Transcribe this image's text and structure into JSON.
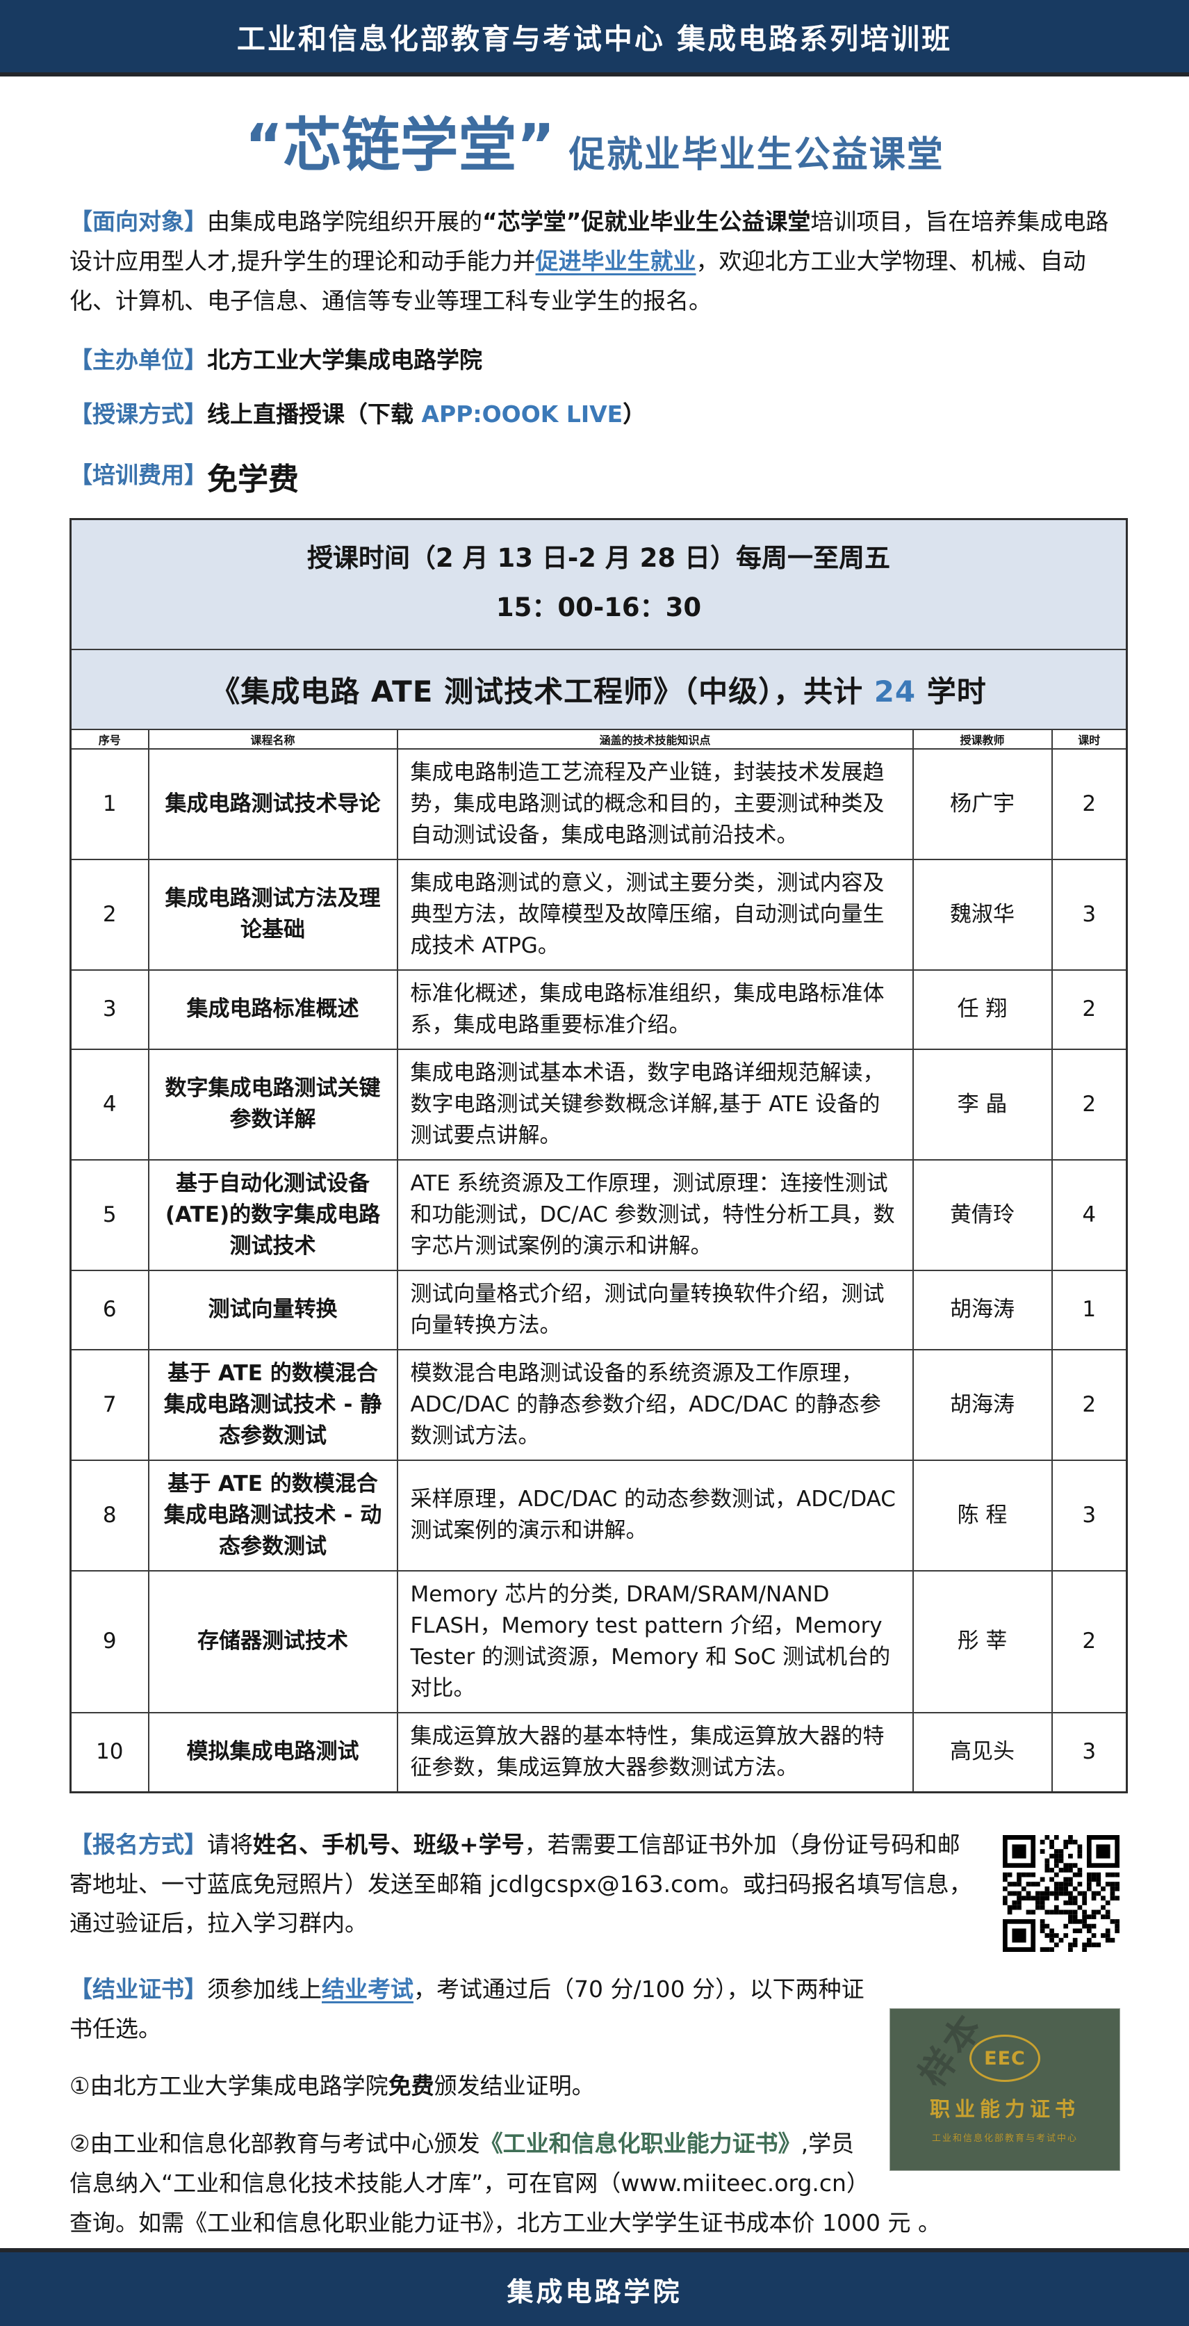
{
  "colors": {
    "navy": "#183a61",
    "steel_blue_title": "#3d6da1",
    "label_blue": "#3a73ad",
    "link_blue": "#3b79b8",
    "band_bg": "#dbe3ee",
    "cert_green_text": "#3f6e55",
    "cert_card_bg": "#4e614f",
    "cert_gold": "#c9a12f"
  },
  "topbar": {
    "title": "工业和信息化部教育与考试中心 集成电路系列培训班"
  },
  "hero": {
    "main": "“芯链学堂”",
    "sub": "促就业毕业生公益课堂"
  },
  "intro": {
    "label": "【面向对象】",
    "pre": "由集成电路学院组织开展的",
    "bold1": "“芯学堂”促就业毕业生公益课堂",
    "mid": "培训项目，旨在培养集成电路设计应用型人才,提升学生的理论和动手能力并",
    "link": "促进毕业生就业",
    "post": "，欢迎北方工业大学物理、机械、自动化、计算机、电子信息、通信等专业等理工科专业学生的报名。"
  },
  "organizer": {
    "label": "【主办单位】",
    "value": "北方工业大学集成电路学院"
  },
  "method": {
    "label": "【授课方式】",
    "pre": "线上直播授课（下载 ",
    "app": "APP:OOOK LIVE",
    "post": "）"
  },
  "fee": {
    "label": "【培训费用】",
    "value": "免学费"
  },
  "schedule": {
    "line1": "授课时间（2 月 13 日-2 月 28 日）每周一至周五",
    "line2": "15：00-16：30"
  },
  "course_title": {
    "pre": "《集成电路 ATE 测试技术工程师》（中级），共计 ",
    "hours": "24",
    "post": " 学时"
  },
  "table": {
    "headers": [
      "序号",
      "课程名称",
      "涵盖的技术技能知识点",
      "授课教师",
      "课时"
    ],
    "rows": [
      {
        "no": "1",
        "name": "集成电路测试技术导论",
        "desc": "集成电路制造工艺流程及产业链，封装技术发展趋势，集成电路测试的概念和目的，主要测试种类及自动测试设备，集成电路测试前沿技术。",
        "teacher": "杨广宇",
        "hours": "2"
      },
      {
        "no": "2",
        "name": "集成电路测试方法及理论基础",
        "desc": "集成电路测试的意义，测试主要分类，测试内容及典型方法，故障模型及故障压缩，自动测试向量生成技术 ATPG。",
        "teacher": "魏淑华",
        "hours": "3"
      },
      {
        "no": "3",
        "name": "集成电路标准概述",
        "desc": "标准化概述，集成电路标准组织，集成电路标准体系，集成电路重要标准介绍。",
        "teacher": "任 翔",
        "hours": "2"
      },
      {
        "no": "4",
        "name": "数字集成电路测试关键参数详解",
        "desc": "集成电路测试基本术语，数字电路详细规范解读，数字电路测试关键参数概念详解,基于 ATE 设备的测试要点讲解。",
        "teacher": "李 晶",
        "hours": "2"
      },
      {
        "no": "5",
        "name": "基于自动化测试设备(ATE)的数字集成电路测试技术",
        "desc": "ATE 系统资源及工作原理，测试原理：连接性测试和功能测试，DC/AC 参数测试，特性分析工具，数字芯片测试案例的演示和讲解。",
        "teacher": "黄倩玲",
        "hours": "4"
      },
      {
        "no": "6",
        "name": "测试向量转换",
        "desc": "测试向量格式介绍，测试向量转换软件介绍，测试向量转换方法。",
        "teacher": "胡海涛",
        "hours": "1"
      },
      {
        "no": "7",
        "name": "基于 ATE 的数模混合集成电路测试技术 - 静态参数测试",
        "desc": "模数混合电路测试设备的系统资源及工作原理，ADC/DAC 的静态参数介绍，ADC/DAC 的静态参数测试方法。",
        "teacher": "胡海涛",
        "hours": "2"
      },
      {
        "no": "8",
        "name": "基于 ATE 的数模混合集成电路测试技术 - 动态参数测试",
        "desc": "采样原理，ADC/DAC 的动态参数测试，ADC/DAC 测试案例的演示和讲解。",
        "teacher": "陈 程",
        "hours": "3"
      },
      {
        "no": "9",
        "name": "存储器测试技术",
        "desc": "Memory 芯片的分类, DRAM/SRAM/NAND FLASH，Memory test pattern 介绍，Memory Tester 的测试资源，Memory 和 SoC 测试机台的对比。",
        "teacher": "彤 莘",
        "hours": "2"
      },
      {
        "no": "10",
        "name": "模拟集成电路测试",
        "desc": "集成运算放大器的基本特性，集成运算放大器的特征参数，集成运算放大器参数测试方法。",
        "teacher": "高见头",
        "hours": "3"
      }
    ]
  },
  "signup": {
    "label": "【报名方式】",
    "pre": "请将",
    "bold1": "姓名、手机号、班级+学号",
    "post": "，若需要工信部证书外加（身份证号码和邮寄地址、一寸蓝底免冠照片）发送至邮箱 jcdlgcspx@163.com。或扫码报名填写信息，通过验证后，拉入学习群内。"
  },
  "certificate": {
    "label": "【结业证书】",
    "pre": "须参加线上",
    "exam": "结业考试",
    "post": "，考试通过后（70 分/100 分），以下两种证书任选。",
    "item1_pre": "①由北方工业大学集成电路学院",
    "item1_bold": "免费",
    "item1_post": "颁发结业证明。",
    "item2_pre": "②由工业和信息化部教育与考试中心颁发",
    "item2_green": "《工业和信息化职业能力证书》",
    "item2_post": ",学员信息纳入“工业和信息化技术技能人才库”，可在官网（www.miiteec.org.cn）查询。如需《工业和信息化职业能力证书》，北方工业大学学生证书成本价 1000 元 。"
  },
  "cert_image": {
    "badge": "EEC",
    "title": "职业能力证书",
    "subtitle": "工业和信息化部教育与考试中心",
    "watermark": "样本"
  },
  "bottombar": {
    "title": "集成电路学院"
  }
}
